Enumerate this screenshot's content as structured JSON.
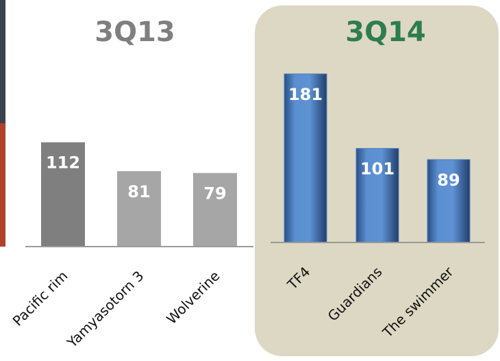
{
  "chart_data": [
    {
      "type": "bar",
      "title": "3Q13",
      "title_color": "#7f7f7f",
      "categories": [
        "Pacific rim",
        "Yamyasotorn 3",
        "Wolverine"
      ],
      "values": [
        112,
        81,
        79
      ],
      "colors": [
        "#7f7f7f",
        "#a6a6a6",
        "#a6a6a6"
      ]
    },
    {
      "type": "bar",
      "title": "3Q14",
      "title_color": "#2e7d4f",
      "categories": [
        "TF4",
        "Guardians",
        "The swimmer"
      ],
      "values": [
        181,
        101,
        89
      ],
      "colors": [
        "#4f81bd",
        "#4f81bd",
        "#4f81bd"
      ]
    }
  ]
}
